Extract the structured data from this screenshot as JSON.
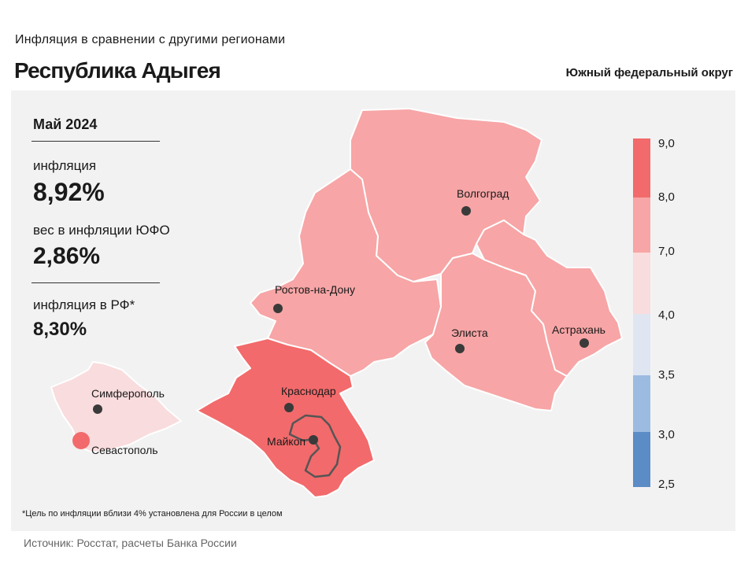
{
  "header": {
    "subtitle": "Инфляция  в сравнении  с другими  регионами",
    "title": "Республика Адыгея",
    "district": "Южный федеральный округ"
  },
  "stats": {
    "period": "Май 2024",
    "inflation_label": "инфляция",
    "inflation_value": "8,92%",
    "weight_label": "вес в инфляции  ЮФО",
    "weight_value": "2,86%",
    "russia_label": "инфляция  в РФ*",
    "russia_value": "8,30%"
  },
  "cities": {
    "volgograd": "Волгоград",
    "rostov": "Ростов-на-Дону",
    "elista": "Элиста",
    "astrakhan": "Астрахань",
    "krasnodar": "Краснодар",
    "simferopol": "Симферополь",
    "maykop": "Майкоп",
    "sevastopol": "Севастополь"
  },
  "legend": {
    "ticks": [
      "9,0",
      "8,0",
      "7,0",
      "4,0",
      "3,5",
      "3,0",
      "2,5"
    ],
    "colors": [
      "#f26a6b",
      "#f7a5a6",
      "#f9dcdd",
      "#dfe6f2",
      "#9cbbe0",
      "#5b8cc6"
    ]
  },
  "colors": {
    "high": "#f26a6b",
    "mid": "#f7a5a6",
    "low": "#f9dcdd"
  },
  "footnote": "*Цель по инфляции вблизи 4% установлена для России в целом",
  "source": "Источник: Росстат, расчеты Банка России"
}
